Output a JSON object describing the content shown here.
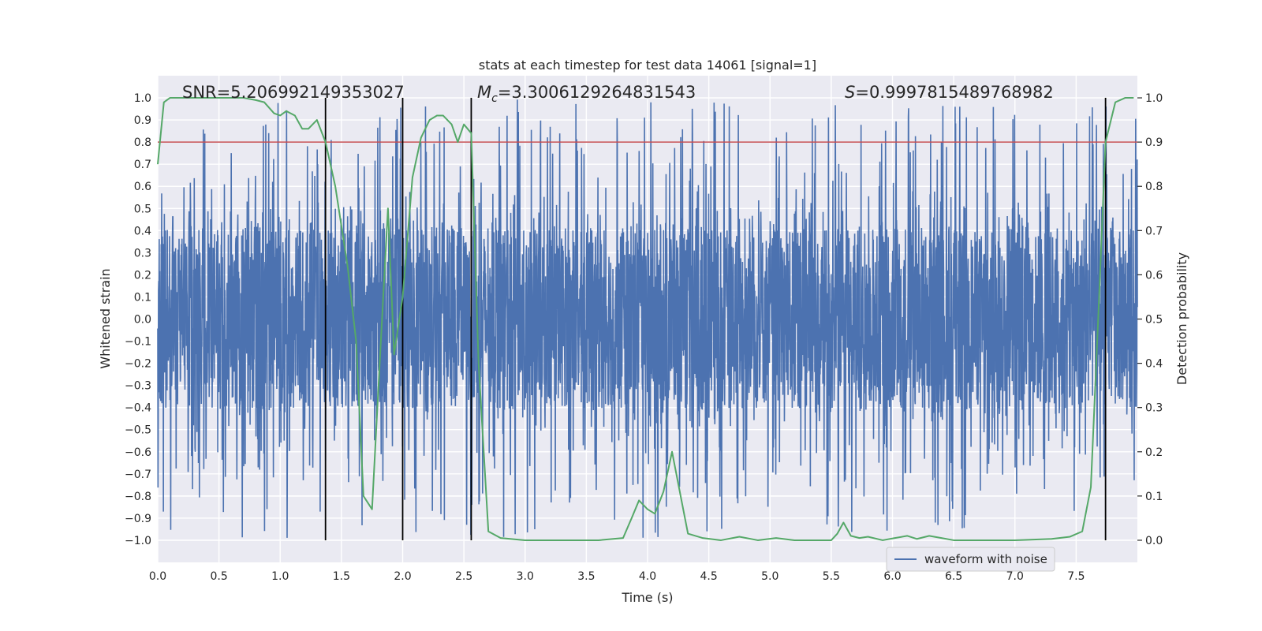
{
  "chart_data": {
    "type": "line",
    "title": "stats at each timestep for test data 14061 [signal=1]",
    "xlabel": "Time (s)",
    "ylabel": "Whitened strain",
    "y2label": "Detection probability",
    "xlim": [
      0,
      8
    ],
    "ylim": [
      -1.1,
      1.1
    ],
    "y2lim": [
      -0.05,
      1.05
    ],
    "xticks": [
      "0.0",
      "0.5",
      "1.0",
      "1.5",
      "2.0",
      "2.5",
      "3.0",
      "3.5",
      "4.0",
      "4.5",
      "5.0",
      "5.5",
      "6.0",
      "6.5",
      "7.0",
      "7.5"
    ],
    "yticks": [
      "1.0",
      "0.9",
      "0.8",
      "0.7",
      "0.6",
      "0.5",
      "0.4",
      "0.3",
      "0.2",
      "0.1",
      "0.0",
      "−0.1",
      "−0.2",
      "−0.3",
      "−0.4",
      "−0.5",
      "−0.6",
      "−0.7",
      "−0.8",
      "−0.9",
      "−1.0"
    ],
    "y2ticks": [
      "1.0",
      "0.9",
      "0.8",
      "0.7",
      "0.6",
      "0.5",
      "0.4",
      "0.3",
      "0.2",
      "0.1",
      "0.0"
    ],
    "grid": true,
    "legend": {
      "position": "bottom-right",
      "entries": [
        "waveform with noise"
      ]
    },
    "annotations": {
      "snr": "SNR=5.206992149353027",
      "mc_symbol": "M",
      "mc_subscript": "c",
      "mc_value": "=3.3006129264831543",
      "s_symbol": "S",
      "s_value": "=0.9997815489768982"
    },
    "threshold_line": {
      "axis": "y2",
      "value": 0.9,
      "color": "#c44e52"
    },
    "vertical_lines": [
      1.37,
      2.0,
      2.56,
      7.74
    ],
    "waveform_series": {
      "name": "waveform with noise",
      "color": "#4c72b0",
      "t_start": 0.0,
      "t_end": 8.0,
      "n_points": 4000,
      "core_amplitude": 0.4,
      "spike_amplitude_range": [
        0.4,
        1.0
      ]
    },
    "probability_series": {
      "name": "detection probability",
      "color": "#55a868",
      "t": [
        0.0,
        0.05,
        0.1,
        0.2,
        0.3,
        0.4,
        0.5,
        0.6,
        0.7,
        0.8,
        0.87,
        0.95,
        1.0,
        1.05,
        1.12,
        1.18,
        1.23,
        1.3,
        1.37,
        1.45,
        1.55,
        1.62,
        1.68,
        1.75,
        1.82,
        1.88,
        1.93,
        2.0,
        2.08,
        2.15,
        2.22,
        2.28,
        2.33,
        2.4,
        2.45,
        2.5,
        2.56,
        2.62,
        2.7,
        2.8,
        3.0,
        3.3,
        3.6,
        3.8,
        3.87,
        3.93,
        4.0,
        4.06,
        4.13,
        4.2,
        4.27,
        4.33,
        4.45,
        4.6,
        4.75,
        4.9,
        5.05,
        5.2,
        5.35,
        5.5,
        5.55,
        5.6,
        5.66,
        5.73,
        5.8,
        5.92,
        6.02,
        6.12,
        6.2,
        6.3,
        6.4,
        6.5,
        6.7,
        7.0,
        7.3,
        7.45,
        7.55,
        7.62,
        7.68,
        7.74,
        7.82,
        7.9,
        7.97
      ],
      "p": [
        0.85,
        0.99,
        1.0,
        1.0,
        1.0,
        1.0,
        1.0,
        1.0,
        1.0,
        0.995,
        0.99,
        0.965,
        0.96,
        0.97,
        0.96,
        0.93,
        0.93,
        0.95,
        0.9,
        0.8,
        0.62,
        0.45,
        0.1,
        0.07,
        0.44,
        0.75,
        0.42,
        0.55,
        0.82,
        0.91,
        0.95,
        0.96,
        0.96,
        0.94,
        0.9,
        0.94,
        0.92,
        0.4,
        0.02,
        0.005,
        0.0,
        0.0,
        0.0,
        0.005,
        0.05,
        0.09,
        0.07,
        0.06,
        0.11,
        0.2,
        0.1,
        0.015,
        0.005,
        0.0,
        0.008,
        0.0,
        0.005,
        0.0,
        0.0,
        0.0,
        0.015,
        0.04,
        0.01,
        0.005,
        0.008,
        0.0,
        0.005,
        0.01,
        0.003,
        0.01,
        0.005,
        0.0,
        0.0,
        0.0,
        0.003,
        0.008,
        0.02,
        0.12,
        0.5,
        0.9,
        0.99,
        1.0,
        1.0
      ]
    }
  }
}
